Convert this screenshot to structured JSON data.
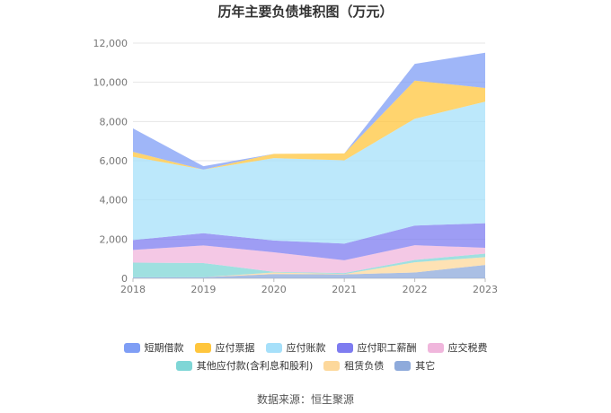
{
  "title": "历年主要负债堆积图（万元）",
  "source": "数据来源：恒生聚源",
  "chart_data": {
    "type": "area",
    "stacked": true,
    "title": "历年主要负债堆积图（万元）",
    "xlabel": "",
    "ylabel": "",
    "x": [
      "2018",
      "2019",
      "2020",
      "2021",
      "2022",
      "2023"
    ],
    "ylim": [
      0,
      12000
    ],
    "yticks": [
      "0",
      "2,000",
      "4,000",
      "6,000",
      "8,000",
      "10,000",
      "12,000"
    ],
    "grid": true,
    "legend_position": "bottom",
    "series": [
      {
        "name": "其它",
        "color": "#8eaadb",
        "values": [
          50,
          60,
          220,
          200,
          300,
          680
        ]
      },
      {
        "name": "租赁负债",
        "color": "#fdd89b",
        "values": [
          0,
          0,
          80,
          20,
          520,
          400
        ]
      },
      {
        "name": "其他应付款(含利息和股利)",
        "color": "#7fd6d6",
        "values": [
          750,
          720,
          30,
          50,
          120,
          180
        ]
      },
      {
        "name": "应交税费",
        "color": "#f0b6dc",
        "values": [
          650,
          900,
          1000,
          650,
          750,
          300
        ]
      },
      {
        "name": "应付职工薪酬",
        "color": "#7e7cf0",
        "values": [
          500,
          620,
          600,
          850,
          1000,
          1250
        ]
      },
      {
        "name": "应付账款",
        "color": "#a6e0fa",
        "values": [
          4250,
          3250,
          4200,
          4250,
          5450,
          6200
        ]
      },
      {
        "name": "应付票据",
        "color": "#ffc63d",
        "values": [
          250,
          0,
          220,
          350,
          1950,
          700
        ]
      },
      {
        "name": "短期借款",
        "color": "#7f9ef5",
        "values": [
          1200,
          170,
          0,
          0,
          850,
          1800
        ]
      }
    ],
    "legend_rows": [
      [
        "短期借款",
        "应付票据",
        "应付账款",
        "应付职工薪酬",
        "应交税费"
      ],
      [
        "其他应付款(含利息和股利)",
        "租赁负债",
        "其它"
      ]
    ]
  }
}
